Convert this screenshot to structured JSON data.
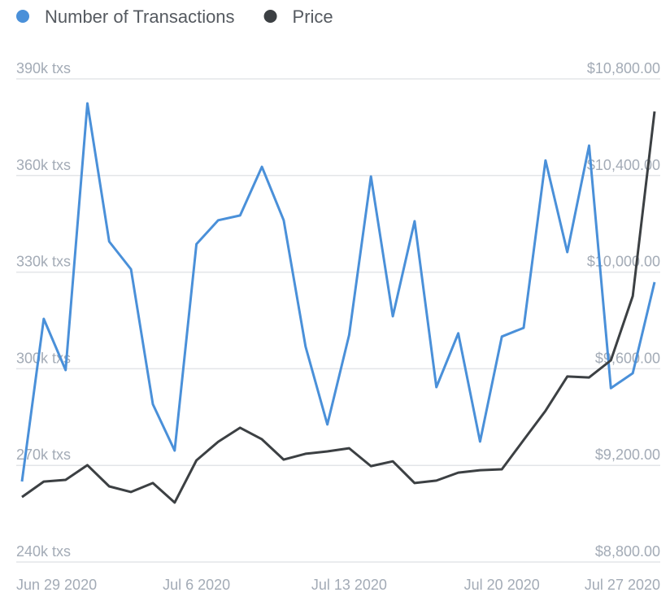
{
  "chart_data": {
    "type": "line",
    "x": [
      "2020-06-28",
      "2020-06-29",
      "2020-06-30",
      "2020-07-01",
      "2020-07-02",
      "2020-07-03",
      "2020-07-04",
      "2020-07-05",
      "2020-07-06",
      "2020-07-07",
      "2020-07-08",
      "2020-07-09",
      "2020-07-10",
      "2020-07-11",
      "2020-07-12",
      "2020-07-13",
      "2020-07-14",
      "2020-07-15",
      "2020-07-16",
      "2020-07-17",
      "2020-07-18",
      "2020-07-19",
      "2020-07-20",
      "2020-07-21",
      "2020-07-22",
      "2020-07-23",
      "2020-07-24",
      "2020-07-25",
      "2020-07-26",
      "2020-07-27"
    ],
    "xticks": [
      {
        "value": "2020-06-29",
        "label": "Jun 29 2020"
      },
      {
        "value": "2020-07-06",
        "label": "Jul 6 2020"
      },
      {
        "value": "2020-07-13",
        "label": "Jul 13 2020"
      },
      {
        "value": "2020-07-20",
        "label": "Jul 20 2020"
      },
      {
        "value": "2020-07-27",
        "label": "Jul 27 2020"
      }
    ],
    "series": [
      {
        "name": "Number of Transactions",
        "color": "#4a90d9",
        "values": [
          265000,
          315500,
          299600,
          382400,
          339500,
          330900,
          289000,
          274600,
          338700,
          346100,
          347600,
          362700,
          346100,
          306900,
          282700,
          310500,
          359700,
          316300,
          345800,
          294300,
          311000,
          277400,
          310000,
          312700,
          364700,
          336200,
          369300,
          294000,
          298600,
          326900
        ]
      },
      {
        "name": "Price",
        "color": "#3c4043",
        "axis": "y2",
        "values": [
          9069,
          9133,
          9140,
          9201,
          9113,
          9090,
          9127,
          9046,
          9221,
          9298,
          9356,
          9308,
          9224,
          9248,
          9258,
          9271,
          9197,
          9217,
          9127,
          9137,
          9170,
          9180,
          9184,
          9305,
          9426,
          9568,
          9564,
          9635,
          9901,
          10665
        ]
      }
    ],
    "ylim": [
      240000,
      390000
    ],
    "yticks": [
      {
        "value": 240000,
        "label": "240k txs"
      },
      {
        "value": 270000,
        "label": "270k txs"
      },
      {
        "value": 300000,
        "label": "300k txs"
      },
      {
        "value": 330000,
        "label": "330k txs"
      },
      {
        "value": 360000,
        "label": "360k txs"
      },
      {
        "value": 390000,
        "label": "390k txs"
      }
    ],
    "y2lim": [
      8800,
      10800
    ],
    "y2ticks": [
      {
        "value": 8800,
        "label": "$8,800.00"
      },
      {
        "value": 9200,
        "label": "$9,200.00"
      },
      {
        "value": 9600,
        "label": "$9,600.00"
      },
      {
        "value": 10000,
        "label": "$10,000.00"
      },
      {
        "value": 10400,
        "label": "$10,400.00"
      },
      {
        "value": 10800,
        "label": "$10,800.00"
      }
    ],
    "grid": true
  }
}
